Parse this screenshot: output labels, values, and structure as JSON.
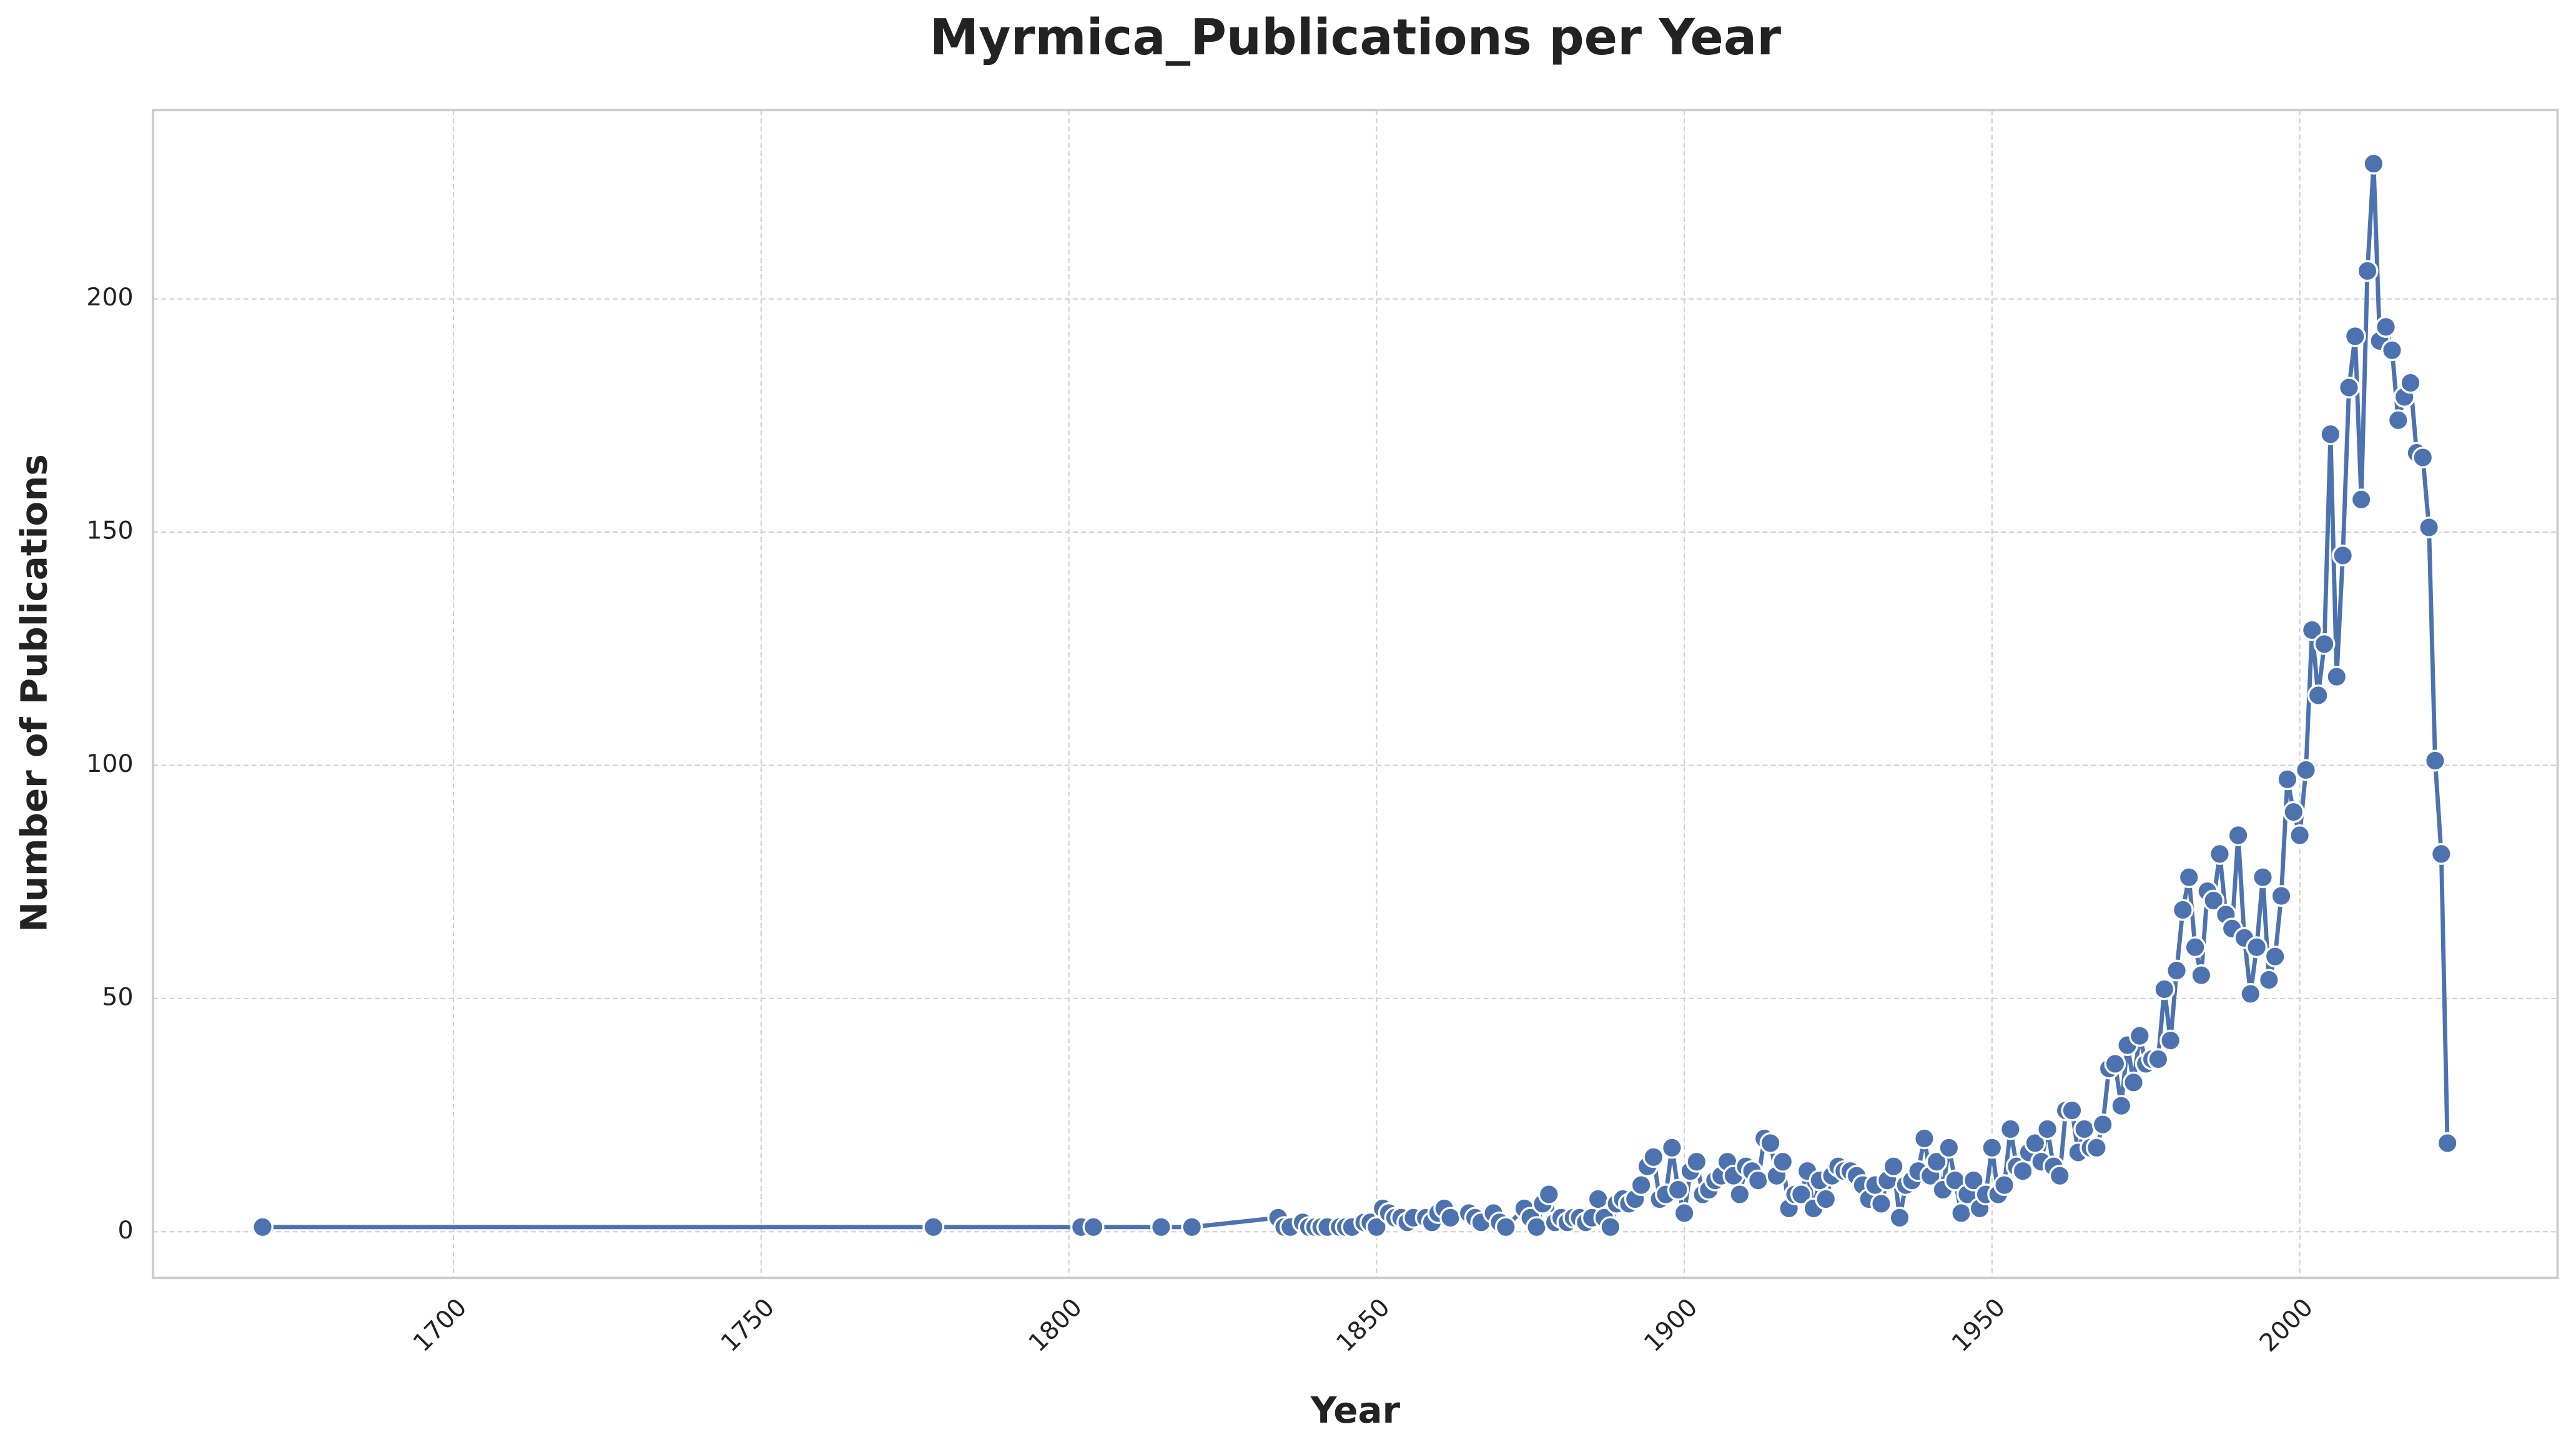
{
  "chart_data": {
    "type": "line",
    "title": "Myrmica_Publications per Year",
    "xlabel": "Year",
    "ylabel": "Number of Publications",
    "x": [
      1669,
      1778,
      1802,
      1804,
      1815,
      1820,
      1834,
      1835,
      1836,
      1838,
      1839,
      1840,
      1841,
      1842,
      1844,
      1845,
      1846,
      1848,
      1849,
      1850,
      1851,
      1852,
      1853,
      1854,
      1855,
      1856,
      1858,
      1859,
      1860,
      1861,
      1862,
      1865,
      1866,
      1867,
      1869,
      1870,
      1871,
      1874,
      1875,
      1876,
      1877,
      1878,
      1879,
      1880,
      1881,
      1882,
      1883,
      1884,
      1885,
      1886,
      1887,
      1888,
      1889,
      1890,
      1891,
      1892,
      1893,
      1894,
      1895,
      1896,
      1897,
      1898,
      1899,
      1900,
      1901,
      1902,
      1903,
      1904,
      1905,
      1906,
      1907,
      1908,
      1909,
      1910,
      1911,
      1912,
      1913,
      1914,
      1915,
      1916,
      1917,
      1918,
      1919,
      1920,
      1921,
      1922,
      1923,
      1924,
      1925,
      1926,
      1927,
      1928,
      1929,
      1930,
      1931,
      1932,
      1933,
      1934,
      1935,
      1936,
      1937,
      1938,
      1939,
      1940,
      1941,
      1942,
      1943,
      1944,
      1945,
      1946,
      1947,
      1948,
      1949,
      1950,
      1951,
      1952,
      1953,
      1954,
      1955,
      1956,
      1957,
      1958,
      1959,
      1960,
      1961,
      1962,
      1963,
      1964,
      1965,
      1966,
      1967,
      1968,
      1969,
      1970,
      1971,
      1972,
      1973,
      1974,
      1975,
      1976,
      1977,
      1978,
      1979,
      1980,
      1981,
      1982,
      1983,
      1984,
      1985,
      1986,
      1987,
      1988,
      1989,
      1990,
      1991,
      1992,
      1993,
      1994,
      1995,
      1996,
      1997,
      1998,
      1999,
      2000,
      2001,
      2002,
      2003,
      2004,
      2005,
      2006,
      2007,
      2008,
      2009,
      2010,
      2011,
      2012,
      2013,
      2014,
      2015,
      2016,
      2017,
      2018,
      2019,
      2020,
      2021,
      2022,
      2023,
      2024
    ],
    "values": [
      1,
      1,
      1,
      1,
      1,
      1,
      3,
      1,
      1,
      2,
      1,
      1,
      1,
      1,
      1,
      1,
      1,
      2,
      2,
      1,
      5,
      4,
      3,
      3,
      2,
      3,
      3,
      2,
      4,
      5,
      3,
      4,
      3,
      2,
      4,
      2,
      1,
      5,
      3,
      1,
      6,
      8,
      2,
      3,
      2,
      3,
      3,
      2,
      3,
      7,
      3,
      1,
      6,
      7,
      6,
      7,
      10,
      14,
      16,
      7,
      8,
      18,
      9,
      4,
      13,
      15,
      8,
      9,
      11,
      12,
      15,
      12,
      8,
      14,
      13,
      11,
      20,
      19,
      12,
      15,
      5,
      8,
      8,
      13,
      5,
      11,
      7,
      12,
      14,
      13,
      13,
      12,
      10,
      7,
      10,
      6,
      11,
      14,
      3,
      10,
      11,
      13,
      20,
      12,
      15,
      9,
      18,
      11,
      4,
      8,
      11,
      5,
      8,
      18,
      8,
      10,
      22,
      14,
      13,
      17,
      19,
      15,
      22,
      14,
      12,
      26,
      26,
      17,
      22,
      18,
      18,
      23,
      35,
      36,
      27,
      40,
      32,
      42,
      36,
      37,
      37,
      52,
      41,
      56,
      69,
      76,
      61,
      55,
      73,
      71,
      81,
      68,
      65,
      85,
      63,
      51,
      61,
      76,
      54,
      59,
      72,
      97,
      90,
      85,
      99,
      129,
      115,
      126,
      171,
      119,
      145,
      181,
      192,
      157,
      206,
      229,
      191,
      194,
      189,
      174,
      179,
      182,
      167,
      166,
      151,
      101,
      81,
      19
    ],
    "color": "#4c72b0",
    "xlim": [
      1651.2,
      2041.9
    ],
    "ylim": [
      -9.9,
      240.5
    ],
    "xticks": [
      1700,
      1750,
      1800,
      1850,
      1900,
      1950,
      2000
    ],
    "yticks": [
      0,
      50,
      100,
      150,
      200
    ],
    "grid": true
  }
}
